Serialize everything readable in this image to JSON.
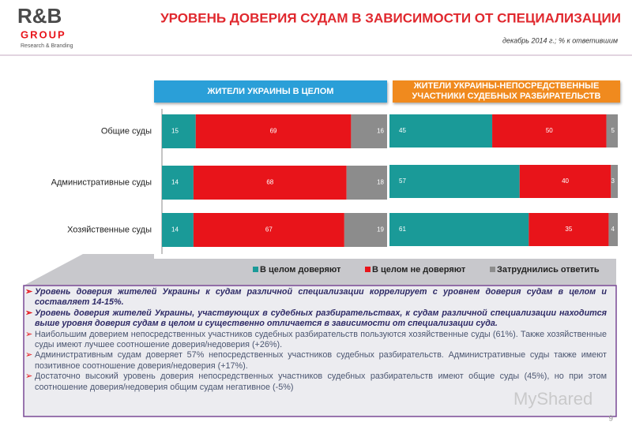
{
  "header": {
    "logo": "R&B",
    "logo_group": "GROUP",
    "logo_sub": "Research & Branding",
    "title": "УРОВЕНЬ ДОВЕРИЯ СУДАМ В ЗАВИСИМОСТИ ОТ СПЕЦИАЛИЗАЦИИ",
    "subtitle": "декабрь 2014 г.; % к ответившим"
  },
  "chart_data": [
    {
      "type": "bar",
      "orientation": "horizontal",
      "stacked": true,
      "title": "ЖИТЕЛИ УКРАИНЫ В ЦЕЛОМ",
      "title_color": "#2a9fd8",
      "categories": [
        "Общие суды",
        "Административные суды",
        "Хозяйственные суды"
      ],
      "xlim": [
        0,
        100
      ],
      "series": [
        {
          "name": "В целом доверяют",
          "color": "#1a9a98",
          "values": [
            15,
            14,
            14
          ]
        },
        {
          "name": "В целом не доверяют",
          "color": "#e8141a",
          "values": [
            69,
            68,
            67
          ]
        },
        {
          "name": "Затруднились ответить",
          "color": "#8c8c8c",
          "values": [
            16,
            18,
            19
          ]
        }
      ]
    },
    {
      "type": "bar",
      "orientation": "horizontal",
      "stacked": true,
      "title": "ЖИТЕЛИ УКРАИНЫ-НЕПОСРЕДСТВЕННЫЕ УЧАСТНИКИ СУДЕБНЫХ РАЗБИРАТЕЛЬСТВ",
      "title_color": "#f08a1e",
      "categories": [
        null,
        null,
        null
      ],
      "xlim": [
        0,
        100
      ],
      "series": [
        {
          "color": "#1a9a98",
          "values": [
            45,
            57,
            61
          ]
        },
        {
          "color": "#e8141a",
          "values": [
            50,
            40,
            35
          ]
        },
        {
          "color": "#8c8c8c",
          "values": [
            5,
            3,
            4
          ]
        }
      ]
    }
  ],
  "notes": [
    "Уровень доверия жителей Украины к судам различной специализации коррелирует с уровнем доверия судам в целом и составляет 14-15%.",
    "Уровень доверия жителей Украины, участвующих в судебных разбирательствах, к судам различной специализации находится выше уровня доверия судам в целом и существенно отличается в зависимости от специализации суда.",
    "Наибольшим доверием непосредственных участников судебных разбирательств пользуются хозяйственные суды (61%). Также хозяйственные суды имеют лучшее соотношение доверия/недоверия (+26%).",
    "Административным судам доверяет 57% непосредственных участников судебных разбирательств. Административные суды также имеют позитивное соотношение доверия/недоверия (+17%).",
    "Достаточно высокий уровень доверия непосредственных участников судебных разбирательств имеют общие суды (45%), но при этом соотношение доверия/недоверия общим судам негативное (-5%)"
  ],
  "watermark": "MyShared",
  "page_number": "9"
}
